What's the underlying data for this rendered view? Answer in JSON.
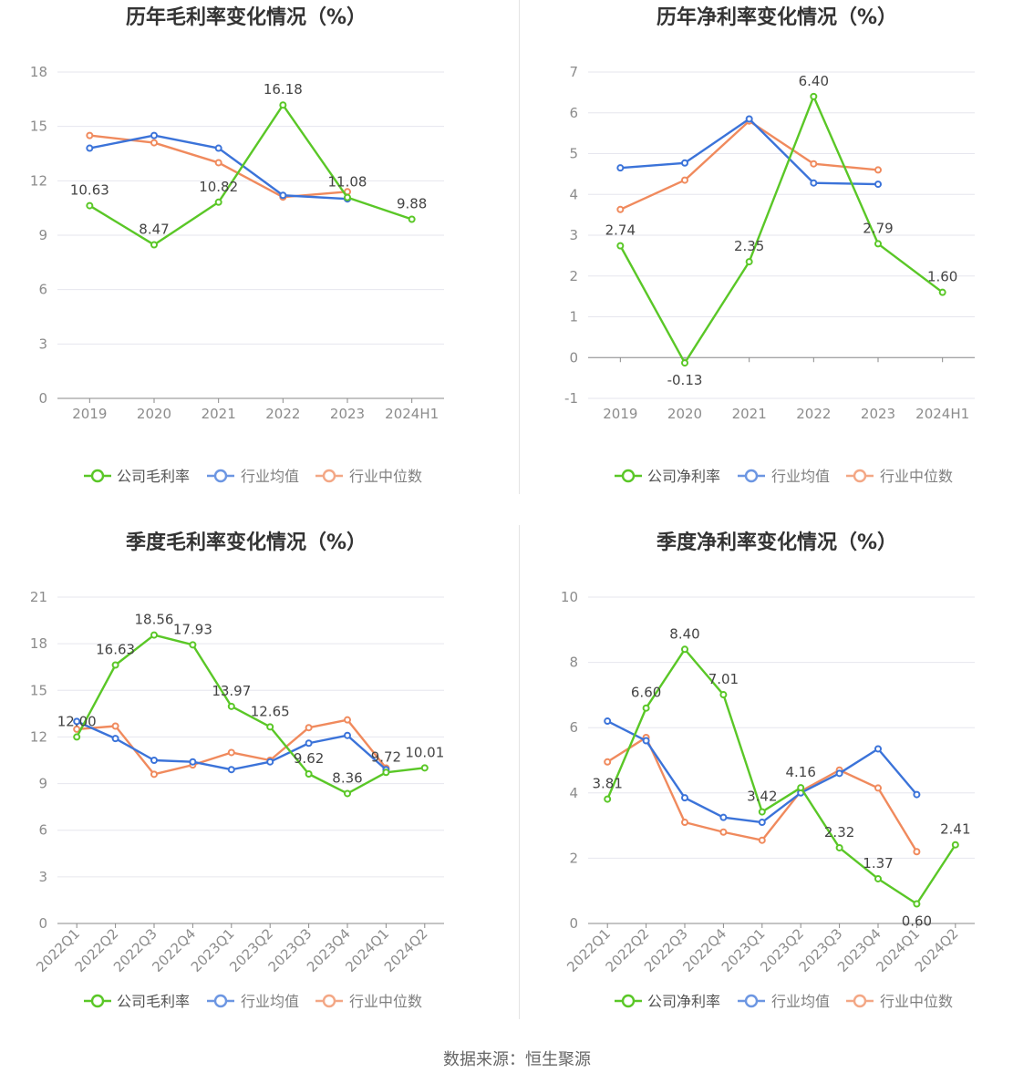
{
  "colors": {
    "company": "#5ac727",
    "industry_avg": "#3b73d9",
    "industry_median": "#f08a5d",
    "grid": "#e6e6ee",
    "axis": "#8a8a8a",
    "tick_text": "#8c8c8c",
    "title_text": "#333333",
    "label_text": "#444444"
  },
  "footer": {
    "source": "数据来源：恒生聚源"
  },
  "chart_data": [
    {
      "id": "annual-gross",
      "type": "line",
      "title": "历年毛利率变化情况（%）",
      "x_tick_rotation": 0,
      "categories": [
        "2019",
        "2020",
        "2021",
        "2022",
        "2023",
        "2024H1"
      ],
      "ylim": [
        0,
        18
      ],
      "yticks": [
        0,
        3,
        6,
        9,
        12,
        15,
        18
      ],
      "series": [
        {
          "key": "company",
          "name": "公司毛利率",
          "values": [
            10.63,
            8.47,
            10.82,
            16.18,
            11.08,
            9.88
          ],
          "labels": [
            "10.63",
            "8.47",
            "10.82",
            "16.18",
            "11.08",
            "9.88"
          ]
        },
        {
          "key": "industry_avg",
          "name": "行业均值",
          "values": [
            13.8,
            14.5,
            13.8,
            11.2,
            11.0,
            null
          ]
        },
        {
          "key": "industry_median",
          "name": "行业中位数",
          "values": [
            14.5,
            14.1,
            13.0,
            11.1,
            11.4,
            null
          ]
        }
      ]
    },
    {
      "id": "annual-net",
      "type": "line",
      "title": "历年净利率变化情况（%）",
      "x_tick_rotation": 0,
      "categories": [
        "2019",
        "2020",
        "2021",
        "2022",
        "2023",
        "2024H1"
      ],
      "ylim": [
        -1,
        7
      ],
      "yticks": [
        -1,
        0,
        1,
        2,
        3,
        4,
        5,
        6,
        7
      ],
      "series": [
        {
          "key": "company",
          "name": "公司净利率",
          "values": [
            2.74,
            -0.13,
            2.35,
            6.4,
            2.79,
            1.6
          ],
          "labels": [
            "2.74",
            "-0.13",
            "2.35",
            "6.40",
            "2.79",
            "1.60"
          ]
        },
        {
          "key": "industry_avg",
          "name": "行业均值",
          "values": [
            4.65,
            4.77,
            5.85,
            4.28,
            4.25,
            null
          ]
        },
        {
          "key": "industry_median",
          "name": "行业中位数",
          "values": [
            3.63,
            4.35,
            5.8,
            4.75,
            4.6,
            null
          ]
        }
      ]
    },
    {
      "id": "quarterly-gross",
      "type": "line",
      "title": "季度毛利率变化情况（%）",
      "x_tick_rotation": -45,
      "categories": [
        "2022Q1",
        "2022Q2",
        "2022Q3",
        "2022Q4",
        "2023Q1",
        "2023Q2",
        "2023Q3",
        "2023Q4",
        "2024Q1",
        "2024Q2"
      ],
      "ylim": [
        0,
        21
      ],
      "yticks": [
        0,
        3,
        6,
        9,
        12,
        15,
        18,
        21
      ],
      "series": [
        {
          "key": "company",
          "name": "公司毛利率",
          "values": [
            12.0,
            16.63,
            18.56,
            17.93,
            13.97,
            12.65,
            9.62,
            8.36,
            9.72,
            10.01
          ],
          "labels": [
            "12.00",
            "16.63",
            "18.56",
            "17.93",
            "13.97",
            "12.65",
            "9.62",
            "8.36",
            "9.72",
            "10.01"
          ]
        },
        {
          "key": "industry_avg",
          "name": "行业均值",
          "values": [
            13.0,
            11.9,
            10.5,
            10.4,
            9.9,
            10.4,
            11.6,
            12.1,
            9.9,
            null
          ]
        },
        {
          "key": "industry_median",
          "name": "行业中位数",
          "values": [
            12.5,
            12.7,
            9.6,
            10.2,
            11.0,
            10.5,
            12.6,
            13.1,
            10.0,
            null
          ]
        }
      ]
    },
    {
      "id": "quarterly-net",
      "type": "line",
      "title": "季度净利率变化情况（%）",
      "x_tick_rotation": -45,
      "categories": [
        "2022Q1",
        "2022Q2",
        "2022Q3",
        "2022Q4",
        "2023Q1",
        "2023Q2",
        "2023Q3",
        "2023Q4",
        "2024Q1",
        "2024Q2"
      ],
      "ylim": [
        0,
        10
      ],
      "yticks": [
        0,
        2,
        4,
        6,
        8,
        10
      ],
      "series": [
        {
          "key": "company",
          "name": "公司净利率",
          "values": [
            3.81,
            6.6,
            8.4,
            7.01,
            3.42,
            4.16,
            2.32,
            1.37,
            0.6,
            2.41
          ],
          "labels": [
            "3.81",
            "6.60",
            "8.40",
            "7.01",
            "3.42",
            "4.16",
            "2.32",
            "1.37",
            "0.60",
            "2.41"
          ]
        },
        {
          "key": "industry_avg",
          "name": "行业均值",
          "values": [
            6.2,
            5.6,
            3.85,
            3.25,
            3.1,
            4.0,
            4.6,
            5.35,
            3.95,
            null
          ]
        },
        {
          "key": "industry_median",
          "name": "行业中位数",
          "values": [
            4.95,
            5.7,
            3.1,
            2.8,
            2.55,
            4.05,
            4.7,
            4.15,
            2.2,
            null
          ]
        }
      ]
    }
  ]
}
